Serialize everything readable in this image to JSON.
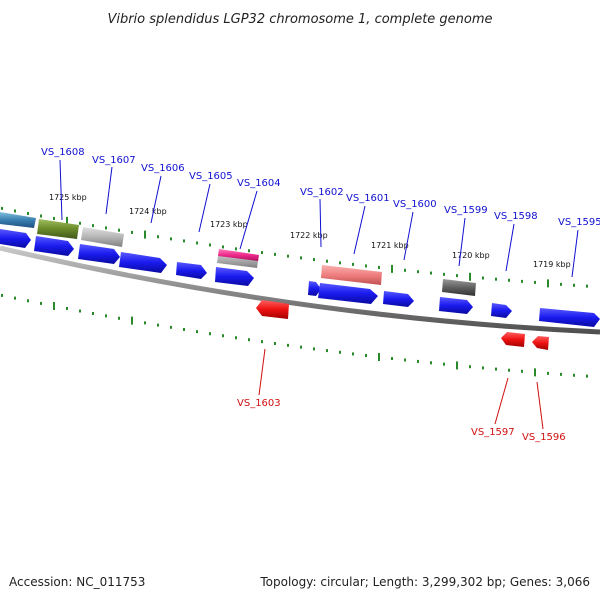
{
  "title": "Vibrio splendidus LGP32 chromosome 1, complete genome",
  "footer": {
    "accession": "Accession: NC_011753",
    "summary": "Topology: circular; Length: 3,299,302 bp; Genes: 3,066"
  },
  "colors": {
    "forward_gene": "#1a1aee",
    "reverse_gene": "#ee1111",
    "backbone": "#888888",
    "tick": "#2a8a2a",
    "forward_label": "#1010d0",
    "reverse_label": "#d01010"
  },
  "kbp_labels": [
    "1725 kbp",
    "1724 kbp",
    "1723 kbp",
    "1722 kbp",
    "1721 kbp",
    "1720 kbp",
    "1719 kbp"
  ],
  "forward_labels": [
    "VS_1608",
    "VS_1607",
    "VS_1606",
    "VS_1605",
    "VS_1604",
    "VS_1602",
    "VS_1601",
    "VS_1600",
    "VS_1599",
    "VS_1598",
    "VS_1595"
  ],
  "reverse_labels": [
    "VS_1603",
    "VS_1597",
    "VS_1596"
  ]
}
